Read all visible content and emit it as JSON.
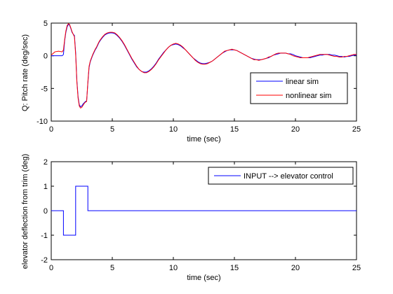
{
  "chart_data": [
    {
      "type": "line",
      "title": "",
      "xlabel": "time (sec)",
      "ylabel": "Q: Pitch rate (deg/sec)",
      "xlim": [
        0,
        25
      ],
      "ylim": [
        -10,
        5
      ],
      "xticks": [
        0,
        5,
        10,
        15,
        20,
        25
      ],
      "yticks": [
        -10,
        -5,
        0,
        5
      ],
      "grid": false,
      "legend_position": "right",
      "series": [
        {
          "name": "linear sim",
          "color": "#0000ff",
          "x": [
            0,
            0.9,
            1.0,
            1.1,
            1.2,
            1.3,
            1.4,
            1.5,
            1.6,
            1.7,
            1.8,
            1.9,
            2.0,
            2.1,
            2.2,
            2.3,
            2.4,
            2.5,
            2.6,
            2.7,
            2.8,
            2.9,
            3.0,
            3.1,
            3.2,
            3.3,
            3.4,
            3.5,
            3.6,
            3.7,
            3.8,
            3.9,
            4.0,
            4.2,
            4.4,
            4.6,
            4.8,
            5.0,
            5.2,
            5.4,
            5.6,
            5.8,
            6.0,
            6.2,
            6.4,
            6.6,
            6.8,
            7.0,
            7.2,
            7.4,
            7.6,
            7.8,
            8.0,
            8.2,
            8.4,
            8.6,
            8.8,
            9.0,
            9.2,
            9.4,
            9.6,
            9.8,
            10.0,
            10.2,
            10.4,
            10.6,
            10.8,
            11.0,
            11.2,
            11.4,
            11.6,
            11.8,
            12.0,
            12.2,
            12.4,
            12.6,
            12.8,
            13.0,
            13.2,
            13.4,
            13.6,
            13.8,
            14.0,
            14.2,
            14.4,
            14.6,
            14.8,
            15.0,
            15.2,
            15.4,
            15.6,
            15.8,
            16.0,
            16.2,
            16.4,
            16.6,
            16.8,
            17.0,
            17.2,
            17.4,
            17.6,
            17.8,
            18.0,
            18.2,
            18.4,
            18.6,
            18.8,
            19.0,
            19.2,
            19.4,
            19.6,
            19.8,
            20.0,
            20.2,
            20.4,
            20.6,
            20.8,
            21.0,
            21.2,
            21.4,
            21.6,
            21.8,
            22.0,
            22.2,
            22.4,
            22.6,
            22.8,
            23.0,
            23.2,
            23.4,
            23.6,
            23.8,
            24.0,
            24.2,
            24.4,
            24.6,
            24.8,
            25.0
          ],
          "y": [
            0,
            0,
            0.2,
            2.3,
            3.6,
            4.4,
            4.8,
            4.7,
            4.2,
            3.6,
            3.3,
            3.1,
            0.5,
            -3.8,
            -6.3,
            -7.5,
            -7.8,
            -7.7,
            -7.4,
            -7.2,
            -7.0,
            -6.9,
            -4.2,
            -1.8,
            -0.9,
            -0.4,
            0.1,
            0.5,
            0.9,
            1.2,
            1.6,
            2.0,
            2.3,
            2.8,
            3.2,
            3.4,
            3.5,
            3.5,
            3.4,
            3.1,
            2.7,
            2.2,
            1.6,
            0.9,
            0.2,
            -0.5,
            -1.1,
            -1.7,
            -2.1,
            -2.4,
            -2.5,
            -2.5,
            -2.3,
            -2.0,
            -1.6,
            -1.1,
            -0.5,
            0.0,
            0.5,
            0.9,
            1.3,
            1.6,
            1.7,
            1.8,
            1.7,
            1.5,
            1.2,
            0.9,
            0.5,
            0.1,
            -0.3,
            -0.6,
            -0.9,
            -1.1,
            -1.2,
            -1.2,
            -1.1,
            -1.0,
            -0.8,
            -0.5,
            -0.2,
            0.1,
            0.4,
            0.6,
            0.8,
            0.9,
            0.9,
            0.9,
            0.8,
            0.6,
            0.4,
            0.2,
            -0.0,
            -0.2,
            -0.4,
            -0.5,
            -0.6,
            -0.6,
            -0.6,
            -0.5,
            -0.4,
            -0.3,
            -0.1,
            0.1,
            0.2,
            0.3,
            0.4,
            0.4,
            0.4,
            0.3,
            0.3,
            0.2,
            0.0,
            -0.1,
            -0.2,
            -0.3,
            -0.3,
            -0.3,
            -0.3,
            -0.2,
            -0.1,
            0.0,
            0.1,
            0.1,
            0.2,
            0.2,
            0.2,
            0.1,
            0.1,
            0.0,
            -0.1,
            -0.1,
            -0.2,
            -0.1,
            -0.1,
            0.0,
            0.1,
            0.1
          ]
        },
        {
          "name": "nonlinear sim",
          "color": "#ff0000",
          "x": [
            0,
            0.3,
            0.6,
            0.9,
            1.0,
            1.1,
            1.2,
            1.3,
            1.4,
            1.5,
            1.6,
            1.7,
            1.8,
            1.9,
            2.0,
            2.1,
            2.2,
            2.3,
            2.4,
            2.5,
            2.6,
            2.7,
            2.8,
            2.9,
            3.0,
            3.1,
            3.2,
            3.3,
            3.4,
            3.5,
            3.6,
            3.7,
            3.8,
            3.9,
            4.0,
            4.2,
            4.4,
            4.6,
            4.8,
            5.0,
            5.2,
            5.4,
            5.6,
            5.8,
            6.0,
            6.2,
            6.4,
            6.6,
            6.8,
            7.0,
            7.2,
            7.4,
            7.6,
            7.8,
            8.0,
            8.2,
            8.4,
            8.6,
            8.8,
            9.0,
            9.2,
            9.4,
            9.6,
            9.8,
            10.0,
            10.2,
            10.4,
            10.6,
            10.8,
            11.0,
            11.2,
            11.4,
            11.6,
            11.8,
            12.0,
            12.2,
            12.4,
            12.6,
            12.8,
            13.0,
            13.2,
            13.4,
            13.6,
            13.8,
            14.0,
            14.2,
            14.4,
            14.6,
            14.8,
            15.0,
            15.2,
            15.4,
            15.6,
            15.8,
            16.0,
            16.2,
            16.4,
            16.6,
            16.8,
            17.0,
            17.2,
            17.4,
            17.6,
            17.8,
            18.0,
            18.2,
            18.4,
            18.6,
            18.8,
            19.0,
            19.2,
            19.4,
            19.6,
            19.8,
            20.0,
            20.2,
            20.4,
            20.6,
            20.8,
            21.0,
            21.2,
            21.4,
            21.6,
            21.8,
            22.0,
            22.2,
            22.4,
            22.6,
            22.8,
            23.0,
            23.2,
            23.4,
            23.6,
            23.8,
            24.0,
            24.2,
            24.4,
            24.6,
            24.8,
            25.0
          ],
          "y": [
            0.1,
            0.6,
            0.7,
            0.6,
            0.9,
            2.5,
            3.8,
            4.6,
            4.9,
            4.8,
            4.3,
            3.7,
            3.3,
            2.9,
            0.2,
            -4.0,
            -6.5,
            -7.7,
            -8.0,
            -7.9,
            -7.6,
            -7.3,
            -7.1,
            -7.0,
            -4.0,
            -1.6,
            -0.8,
            -0.3,
            0.2,
            0.6,
            1.0,
            1.3,
            1.7,
            2.1,
            2.4,
            2.9,
            3.3,
            3.5,
            3.6,
            3.6,
            3.5,
            3.2,
            2.8,
            2.3,
            1.7,
            1.0,
            0.3,
            -0.4,
            -1.0,
            -1.6,
            -2.1,
            -2.4,
            -2.6,
            -2.6,
            -2.4,
            -2.1,
            -1.7,
            -1.2,
            -0.6,
            -0.1,
            0.4,
            0.9,
            1.3,
            1.6,
            1.8,
            1.9,
            1.8,
            1.6,
            1.3,
            0.9,
            0.5,
            0.1,
            -0.3,
            -0.7,
            -1.0,
            -1.2,
            -1.3,
            -1.3,
            -1.2,
            -1.0,
            -0.8,
            -0.5,
            -0.2,
            0.1,
            0.4,
            0.7,
            0.8,
            0.9,
            1.0,
            0.9,
            0.8,
            0.6,
            0.4,
            0.2,
            0.0,
            -0.2,
            -0.4,
            -0.6,
            -0.6,
            -0.7,
            -0.6,
            -0.5,
            -0.4,
            -0.2,
            -0.1,
            0.1,
            0.3,
            0.4,
            0.4,
            0.4,
            0.4,
            0.3,
            0.2,
            0.0,
            -0.1,
            -0.2,
            -0.3,
            -0.3,
            -0.3,
            -0.3,
            -0.2,
            -0.1,
            0.0,
            0.1,
            0.2,
            0.2,
            0.2,
            0.2,
            0.1,
            0.0,
            -0.1,
            -0.1,
            -0.2,
            -0.2,
            -0.1,
            -0.1,
            0.0,
            0.1,
            0.2,
            0.2
          ]
        }
      ]
    },
    {
      "type": "line",
      "title": "",
      "xlabel": "time (sec)",
      "ylabel": "elevator deflection from trim (deg)",
      "xlim": [
        0,
        25
      ],
      "ylim": [
        -2,
        2
      ],
      "xticks": [
        0,
        5,
        10,
        15,
        20,
        25
      ],
      "yticks": [
        -2,
        -1,
        0,
        1,
        2
      ],
      "grid": false,
      "legend_position": "top-right",
      "series": [
        {
          "name": "INPUT --> elevator control",
          "color": "#0000ff",
          "x": [
            0,
            1,
            1,
            2,
            2,
            3,
            3,
            25
          ],
          "y": [
            0,
            0,
            -1,
            -1,
            1,
            1,
            0,
            0
          ]
        }
      ]
    }
  ]
}
